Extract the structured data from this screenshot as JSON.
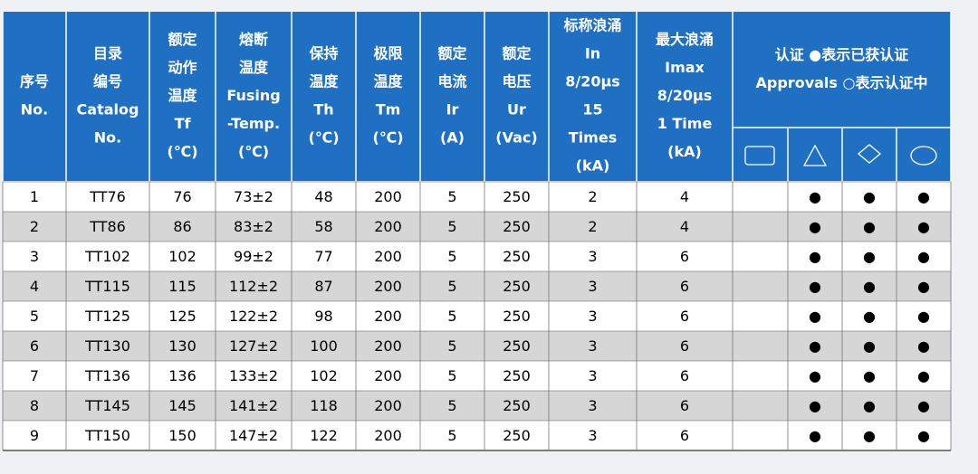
{
  "table": {
    "header": [
      [
        "序号",
        "No."
      ],
      [
        "目录",
        "编号",
        "Catalog",
        "No."
      ],
      [
        "额定",
        "动作",
        "温度",
        "Tf",
        "(℃)"
      ],
      [
        "熔断",
        "温度",
        "Fusing",
        "-Temp.",
        "(℃)"
      ],
      [
        "保持",
        "温度",
        "Th",
        "(℃)"
      ],
      [
        "极限",
        "温度",
        "Tm",
        "(℃)"
      ],
      [
        "额定",
        "电流",
        "Ir",
        "(A)"
      ],
      [
        "额定",
        "电压",
        "Ur",
        "(Vac)"
      ],
      [
        "标称浪涌",
        "In",
        "8/20μs",
        "15",
        "Times",
        "(kA)"
      ],
      [
        "最大浪涌",
        "Imax",
        "8/20μs",
        "1 Time",
        "(kA)"
      ],
      [
        "认证  ●表示已获认证",
        "Approvals ○表示认证中"
      ]
    ],
    "rows": [
      [
        "1",
        "TT76",
        "76",
        "73±2",
        "48",
        "200",
        "5",
        "250",
        "2",
        "4",
        null,
        "●",
        "●",
        "●"
      ],
      [
        "2",
        "TT86",
        "86",
        "83±2",
        "58",
        "200",
        "5",
        "250",
        "2",
        "4",
        null,
        "●",
        "●",
        "●"
      ],
      [
        "3",
        "TT102",
        "102",
        "99±2",
        "77",
        "200",
        "5",
        "250",
        "3",
        "6",
        null,
        "●",
        "●",
        "●"
      ],
      [
        "4",
        "TT115",
        "115",
        "112±2",
        "87",
        "200",
        "5",
        "250",
        "3",
        "6",
        null,
        "●",
        "●",
        "●"
      ],
      [
        "5",
        "TT125",
        "125",
        "122±2",
        "98",
        "200",
        "5",
        "250",
        "3",
        "6",
        null,
        "●",
        "●",
        "●"
      ],
      [
        "6",
        "TT130",
        "130",
        "127±2",
        "100",
        "200",
        "5",
        "250",
        "3",
        "6",
        null,
        "●",
        "●",
        "●"
      ],
      [
        "7",
        "TT136",
        "136",
        "133±2",
        "102",
        "200",
        "5",
        "250",
        "3",
        "6",
        null,
        "●",
        "●",
        "●"
      ],
      [
        "8",
        "TT145",
        "145",
        "141±2",
        "118",
        "200",
        "5",
        "250",
        "3",
        "6",
        null,
        "●",
        "●",
        "●"
      ],
      [
        "9",
        "TT150",
        "150",
        "147±2",
        "122",
        "200",
        "5",
        "250",
        "3",
        "6",
        null,
        "●",
        "●",
        "●"
      ]
    ]
  }
}
